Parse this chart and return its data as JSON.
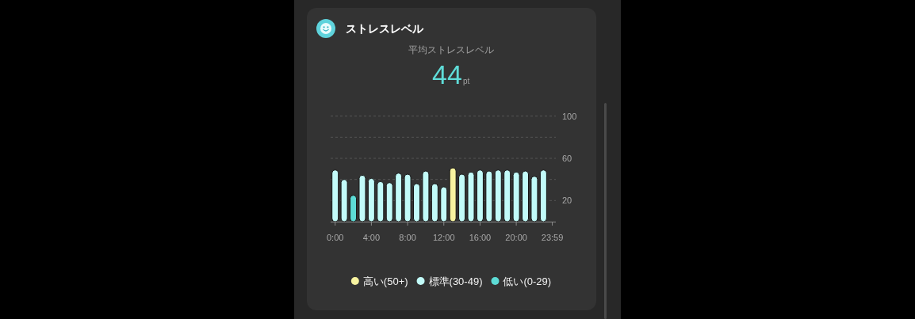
{
  "chart_data": {
    "type": "bar",
    "title": "ストレスレベル",
    "subtitle": "平均ストレスレベル",
    "annotations": [
      "44",
      "pt"
    ],
    "x": [
      0,
      1,
      2,
      3,
      4,
      5,
      6,
      7,
      8,
      9,
      10,
      11,
      12,
      13,
      14,
      15,
      16,
      17,
      18,
      19,
      20,
      21,
      22,
      23
    ],
    "series": [
      {
        "name": "高い(50+)",
        "color": "#f8f4a0",
        "values": [
          null,
          null,
          null,
          null,
          null,
          null,
          null,
          null,
          null,
          null,
          null,
          null,
          null,
          51,
          null,
          null,
          null,
          null,
          null,
          null,
          null,
          null,
          null,
          null
        ]
      },
      {
        "name": "標準(30-49)",
        "color": "#c2fbf9",
        "values": [
          49,
          40,
          null,
          44,
          41,
          38,
          37,
          46,
          45,
          36,
          48,
          36,
          33,
          null,
          45,
          47,
          49,
          48,
          49,
          49,
          47,
          48,
          43,
          49
        ]
      },
      {
        "name": "低い(0-29)",
        "color": "#5ddcd6",
        "values": [
          null,
          null,
          25,
          null,
          null,
          null,
          null,
          null,
          null,
          null,
          null,
          null,
          null,
          null,
          null,
          null,
          null,
          null,
          null,
          null,
          null,
          null,
          null,
          null
        ]
      }
    ],
    "stacked": true,
    "xlim": [
      -0.5,
      24.5
    ],
    "xticks": [
      {
        "value": 0,
        "label": "0:00"
      },
      {
        "value": 4,
        "label": "4:00"
      },
      {
        "value": 8,
        "label": "8:00"
      },
      {
        "value": 12,
        "label": "12:00"
      },
      {
        "value": 16,
        "label": "16:00"
      },
      {
        "value": 20,
        "label": "20:00"
      },
      {
        "value": 23.98,
        "label": "23:59"
      }
    ],
    "ylim": [
      0,
      100
    ],
    "yticks": [
      20,
      {
        "value": 40,
        "label": null
      },
      60,
      {
        "value": 80,
        "label": null
      },
      100
    ],
    "grid": "y",
    "legend": "bottom"
  }
}
